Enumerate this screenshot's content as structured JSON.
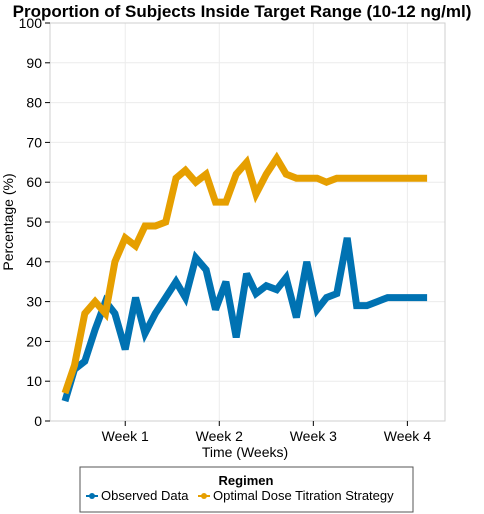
{
  "chart_data": {
    "type": "line",
    "title": "Proportion of Subjects Inside Target Range (10-12 ng/ml)",
    "xlabel": "Time (Weeks)",
    "ylabel": "Percentage (%)",
    "xlim": [
      0.7,
      4.9
    ],
    "ylim": [
      0,
      100
    ],
    "x_ticks": [
      {
        "value": 1.5,
        "label": "Week 1"
      },
      {
        "value": 2.5,
        "label": "Week 2"
      },
      {
        "value": 3.5,
        "label": "Week 3"
      },
      {
        "value": 4.5,
        "label": "Week 4"
      }
    ],
    "y_ticks": [
      0,
      10,
      20,
      30,
      40,
      50,
      60,
      70,
      80,
      90,
      100
    ],
    "grid": true,
    "legend": {
      "title": "Regimen",
      "position": "bottom"
    },
    "x": [
      0.86,
      0.96,
      1.07,
      1.18,
      1.29,
      1.39,
      1.5,
      1.61,
      1.71,
      1.82,
      1.93,
      2.04,
      2.14,
      2.25,
      2.36,
      2.46,
      2.57,
      2.68,
      2.79,
      2.89,
      3.0,
      3.11,
      3.21,
      3.32,
      3.43,
      3.54,
      3.64,
      3.75,
      3.86,
      3.96,
      4.07,
      4.18,
      4.29,
      4.39,
      4.5,
      4.61,
      4.71
    ],
    "series": [
      {
        "name": "Observed Data",
        "color": "#0072B2",
        "values": [
          5,
          13,
          15,
          23,
          30,
          27,
          18,
          31,
          22,
          27,
          31,
          35,
          31,
          41,
          38,
          28,
          35,
          21,
          37,
          32,
          34,
          33,
          36,
          26,
          40,
          28,
          31,
          32,
          46,
          29,
          29,
          30,
          31,
          31,
          31,
          31,
          31
        ]
      },
      {
        "name": "Optimal Dose Titration Strategy",
        "color": "#E69F00",
        "values": [
          7,
          14,
          27,
          30,
          27,
          40,
          46,
          44,
          49,
          49,
          50,
          61,
          63,
          60,
          62,
          55,
          55,
          62,
          65,
          57,
          62,
          66,
          62,
          61,
          61,
          61,
          60,
          61,
          61,
          61,
          61,
          61,
          61,
          61,
          61,
          61,
          61
        ]
      }
    ]
  }
}
